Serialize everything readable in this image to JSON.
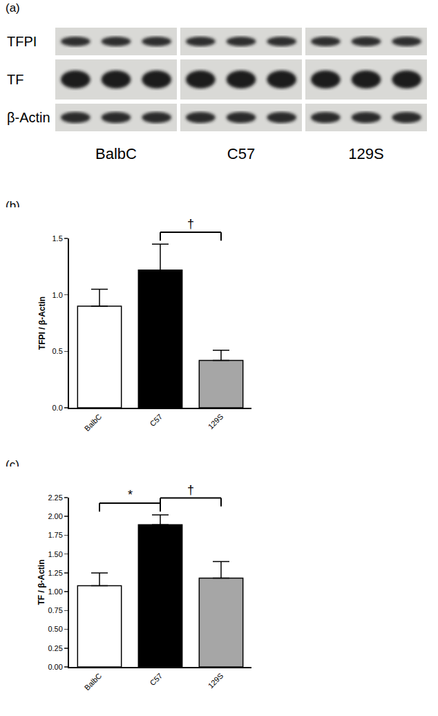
{
  "panel_labels": [
    "(a)",
    "(b)",
    "(c)"
  ],
  "blot": {
    "rows": [
      "TFPI",
      "TF",
      "β-Actin"
    ],
    "groups": [
      "BalbC",
      "C57",
      "129S"
    ]
  },
  "chart_data": [
    {
      "type": "bar",
      "categories": [
        "BalbC",
        "C57",
        "129S"
      ],
      "values": [
        0.9,
        1.22,
        0.42
      ],
      "errors": [
        0.15,
        0.23,
        0.09
      ],
      "colors": [
        "#ffffff",
        "#000000",
        "#a6a6a6"
      ],
      "y_label": "TFPI / β-Actin",
      "ylim": [
        0,
        1.5
      ],
      "yticks": [
        {
          "value": 0,
          "label": "0.0"
        },
        0.5,
        {
          "value": 1,
          "label": "1.0"
        },
        1.5
      ],
      "brackets": [
        {
          "from": "C57",
          "to": "129S",
          "text": "†"
        }
      ]
    },
    {
      "type": "bar",
      "categories": [
        "BalbC",
        "C57",
        "129S"
      ],
      "values": [
        1.08,
        1.89,
        1.18
      ],
      "errors": [
        0.17,
        0.13,
        0.22
      ],
      "colors": [
        "#ffffff",
        "#000000",
        "#a6a6a6"
      ],
      "y_label": "TF / β-Actin",
      "ylim": [
        0,
        2.25
      ],
      "yticks": [
        {
          "value": 0,
          "label": "0.00"
        },
        0.25,
        {
          "value": 0.5,
          "label": "0.50"
        },
        0.75,
        {
          "value": 1,
          "label": "1.00"
        },
        1.25,
        {
          "value": 1.5,
          "label": "1.50"
        },
        1.75,
        {
          "value": 2,
          "label": "2.00"
        },
        2.25
      ],
      "brackets": [
        {
          "from": "BalbC",
          "to": "C57",
          "text": "*"
        },
        {
          "from": "C57",
          "to": "129S",
          "text": "†"
        }
      ]
    }
  ]
}
